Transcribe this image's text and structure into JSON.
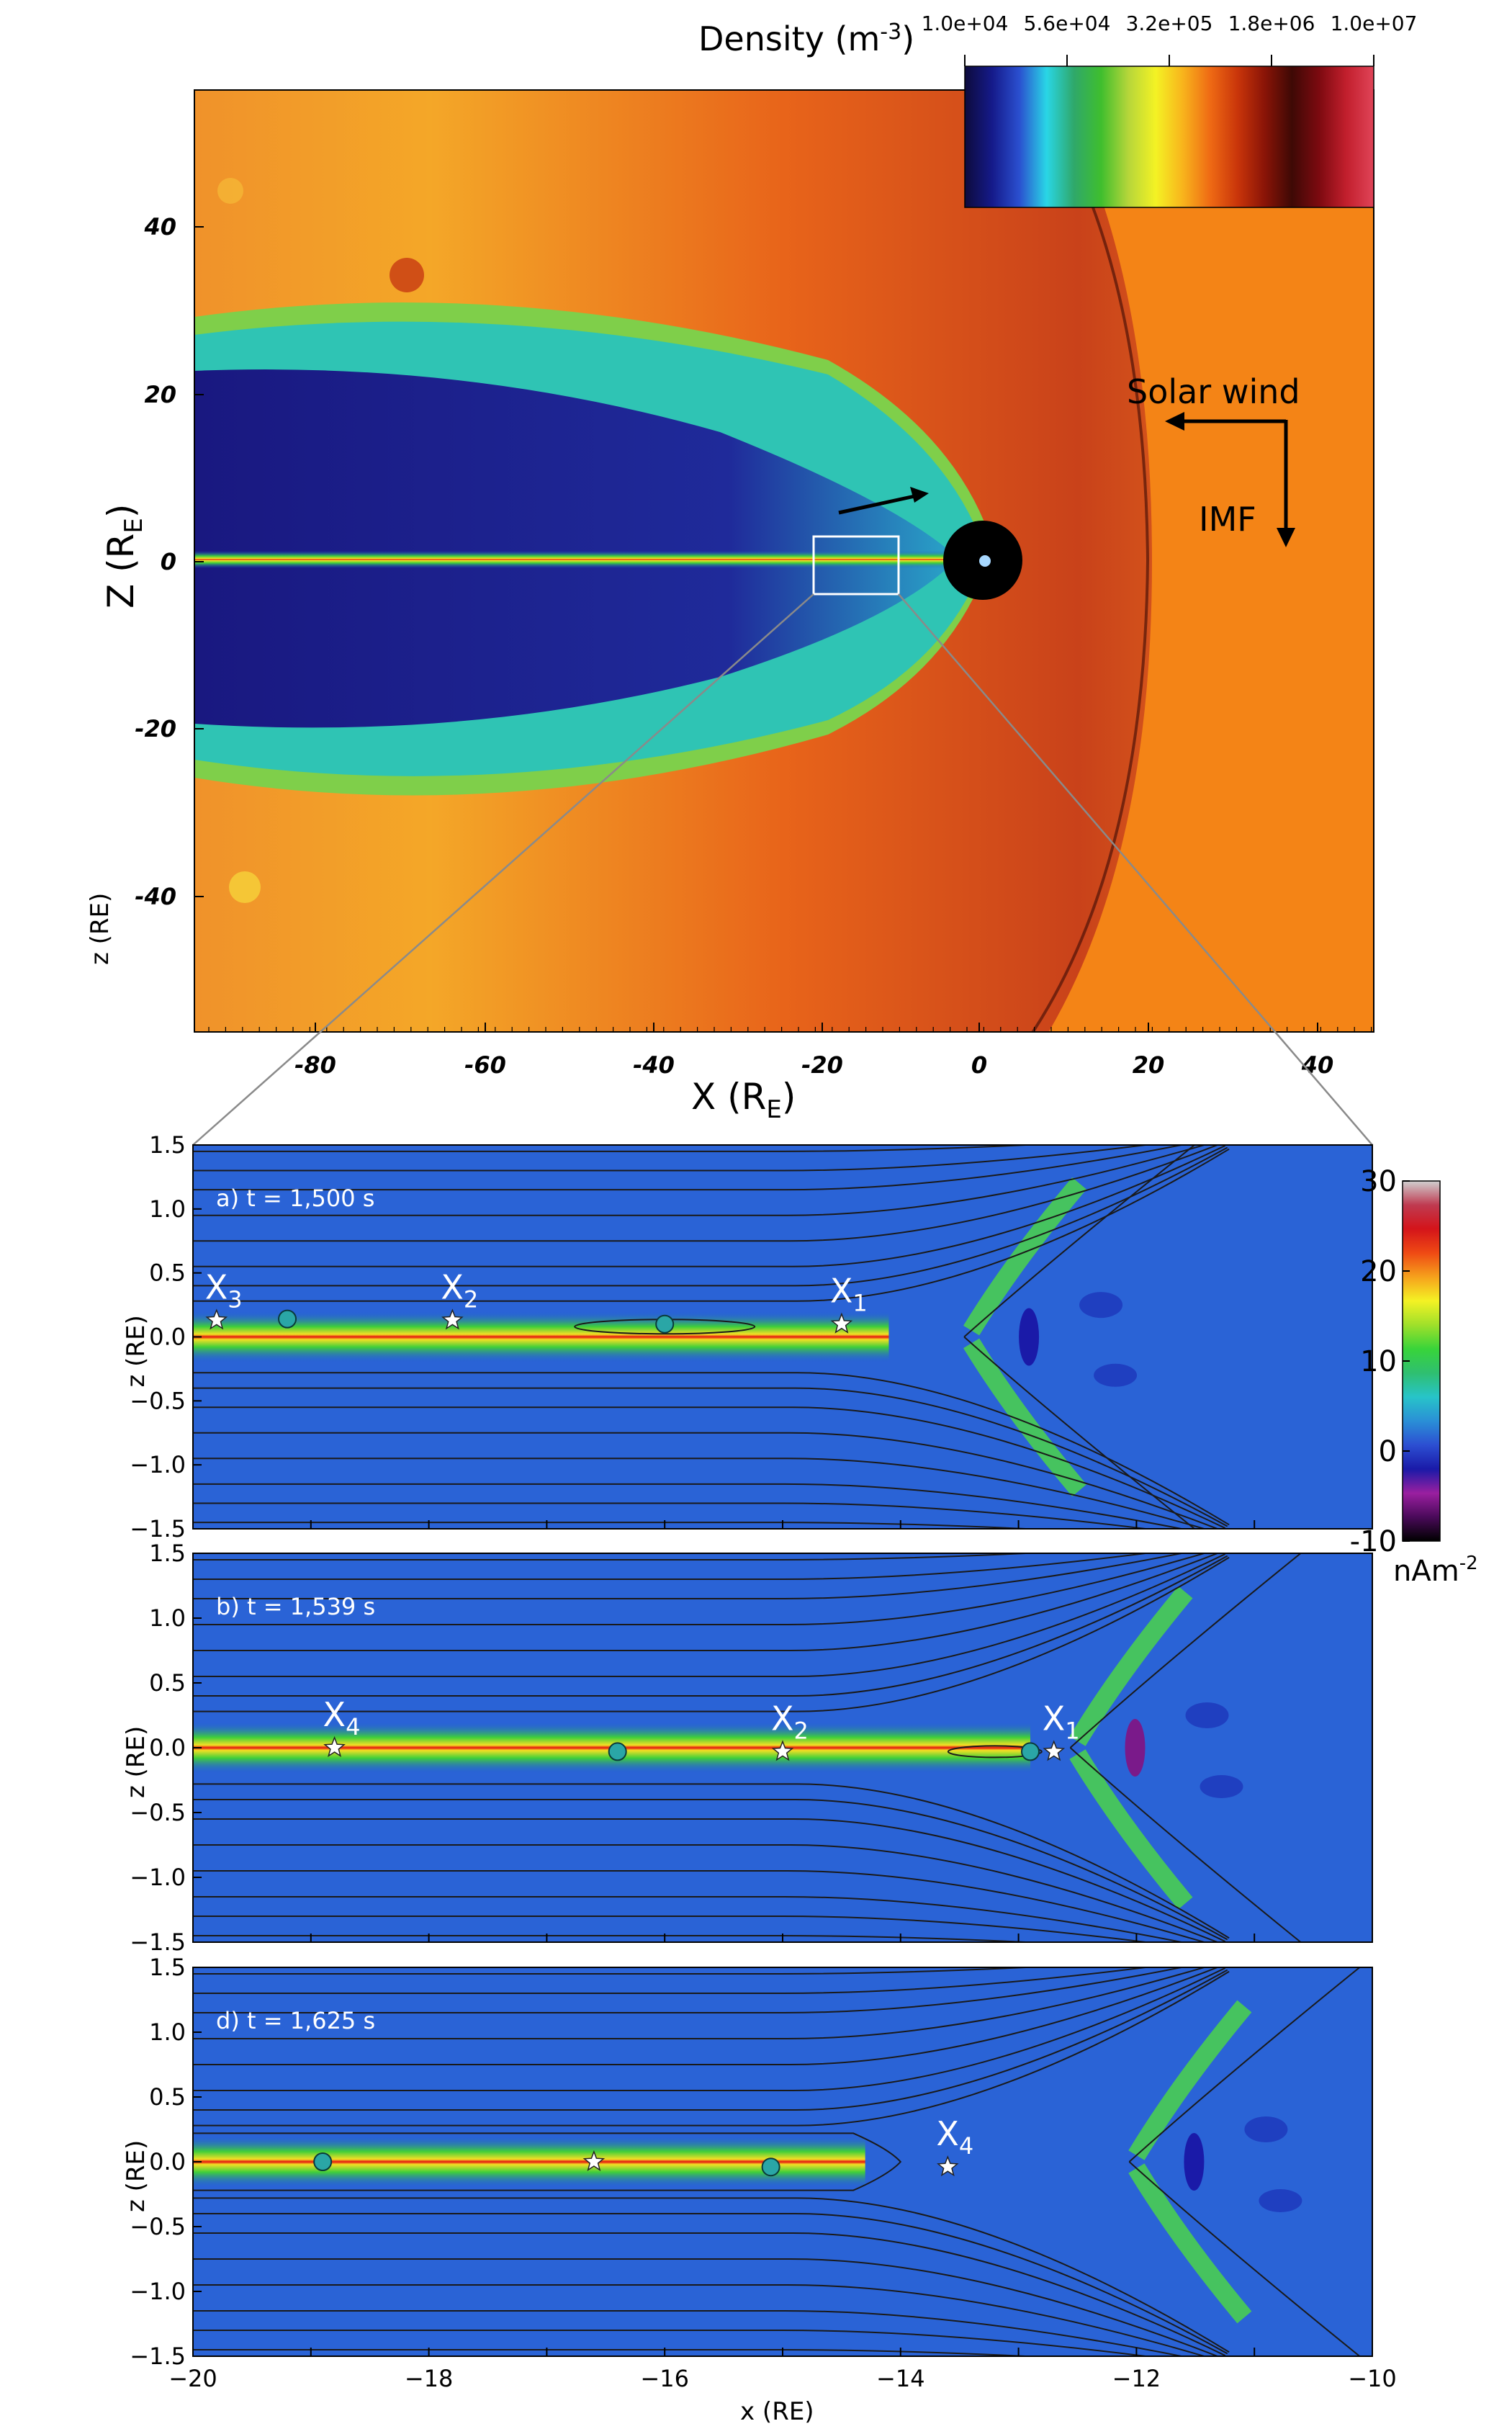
{
  "top": {
    "colorbar_title_prefix": "Density (m",
    "colorbar_title_exp": "-3",
    "colorbar_title_suffix": ")",
    "colorbar_ticks": [
      "1.0e+04",
      "5.6e+04",
      "3.2e+05",
      "1.8e+06",
      "1.0e+07"
    ],
    "colorbar_colors": [
      "#0d0b3c",
      "#151a8a",
      "#2a4fcf",
      "#29d6e6",
      "#2fa86a",
      "#3fbe2e",
      "#b6d63a",
      "#f4f224",
      "#f8b41c",
      "#ef6a14",
      "#c9350a",
      "#8a1407",
      "#3e0905",
      "#7d0a10",
      "#c21f2d",
      "#e04458"
    ],
    "ylabel_main": "Z (R",
    "ylabel_sub": "E",
    "ylabel_close": ")",
    "ylabel_alt": "z (RE)",
    "xlabel_main": "X (R",
    "xlabel_sub": "E",
    "xlabel_close": ")",
    "xticks": [
      "-80",
      "-60",
      "-40",
      "-20",
      "0",
      "20",
      "40"
    ],
    "yticks": [
      "40",
      "20",
      "0",
      "-20",
      "-40"
    ],
    "solar_wind_label": "Solar wind",
    "imf_label": "IMF"
  },
  "panels": [
    {
      "label": "a) t = 1,500 s",
      "markers": [
        {
          "name": "X",
          "sub": "3",
          "x": -19.8,
          "z": 0.13
        },
        {
          "name": "X",
          "sub": "2",
          "x": -17.8,
          "z": 0.13
        },
        {
          "name": "X",
          "sub": "1",
          "x": -14.5,
          "z": 0.1
        }
      ],
      "circles": [
        {
          "x": -19.2,
          "z": 0.14
        },
        {
          "x": -16.0,
          "z": 0.1
        }
      ]
    },
    {
      "label": "b) t = 1,539 s",
      "markers": [
        {
          "name": "X",
          "sub": "4",
          "x": -18.8,
          "z": 0.0
        },
        {
          "name": "X",
          "sub": "2",
          "x": -15.0,
          "z": -0.03
        },
        {
          "name": "X",
          "sub": "1",
          "x": -12.7,
          "z": -0.03
        }
      ],
      "circles": [
        {
          "x": -16.4,
          "z": -0.03
        },
        {
          "x": -12.9,
          "z": -0.03
        }
      ]
    },
    {
      "label": "d) t = 1,625 s",
      "markers": [
        {
          "name": "",
          "sub": "",
          "x": -16.6,
          "z": 0.0
        },
        {
          "name": "X",
          "sub": "4",
          "x": -13.6,
          "z": -0.04
        }
      ],
      "circles": [
        {
          "x": -18.9,
          "z": 0.0
        },
        {
          "x": -15.1,
          "z": -0.04
        }
      ]
    }
  ],
  "zoom": {
    "xlabel": "x (RE)",
    "ylabel": "z (RE)",
    "xticks": [
      "−20",
      "−18",
      "−16",
      "−14",
      "−12",
      "−10"
    ],
    "yticks": [
      "1.5",
      "1.0",
      "0.5",
      "0.0",
      "−0.5",
      "−1.0",
      "−1.5"
    ],
    "cbar_ticks": [
      "30",
      "20",
      "10",
      "0",
      "-10"
    ],
    "cbar_unit_main": "nAm",
    "cbar_unit_exp": "-2",
    "cbar_colors": [
      "#000000",
      "#4a0a5a",
      "#9a1fa0",
      "#1a1aa8",
      "#2c4fd2",
      "#2a8fd6",
      "#27c4c9",
      "#2fbf70",
      "#38d43a",
      "#9fe02a",
      "#f4f224",
      "#f6a21c",
      "#ef4a14",
      "#d4141a",
      "#bf3a50",
      "#d0d0d0"
    ]
  }
}
